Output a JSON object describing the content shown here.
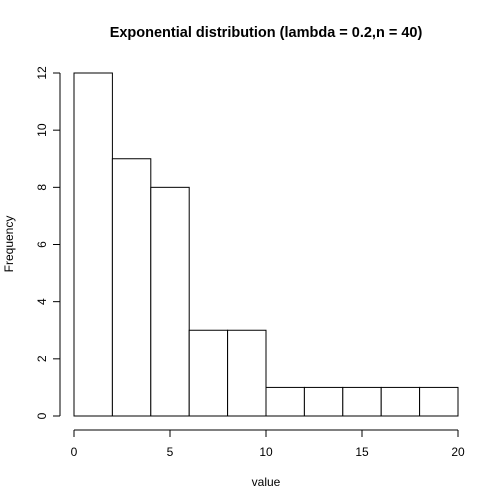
{
  "chart_data": {
    "type": "bar",
    "title": "Exponential distribution (lambda = 0.2,n = 40)",
    "xlabel": "value",
    "ylabel": "Frequency",
    "bins": [
      {
        "from": 0,
        "to": 2,
        "count": 12
      },
      {
        "from": 2,
        "to": 4,
        "count": 9
      },
      {
        "from": 4,
        "to": 6,
        "count": 8
      },
      {
        "from": 6,
        "to": 8,
        "count": 3
      },
      {
        "from": 8,
        "to": 10,
        "count": 3
      },
      {
        "from": 10,
        "to": 12,
        "count": 1
      },
      {
        "from": 12,
        "to": 14,
        "count": 1
      },
      {
        "from": 14,
        "to": 16,
        "count": 1
      },
      {
        "from": 16,
        "to": 18,
        "count": 1
      },
      {
        "from": 18,
        "to": 20,
        "count": 1
      }
    ],
    "xlim": [
      0,
      20
    ],
    "ylim": [
      0,
      12
    ],
    "xticks": [
      0,
      5,
      10,
      15,
      20
    ],
    "yticks": [
      0,
      2,
      4,
      6,
      8,
      10,
      12
    ],
    "grid": false
  }
}
